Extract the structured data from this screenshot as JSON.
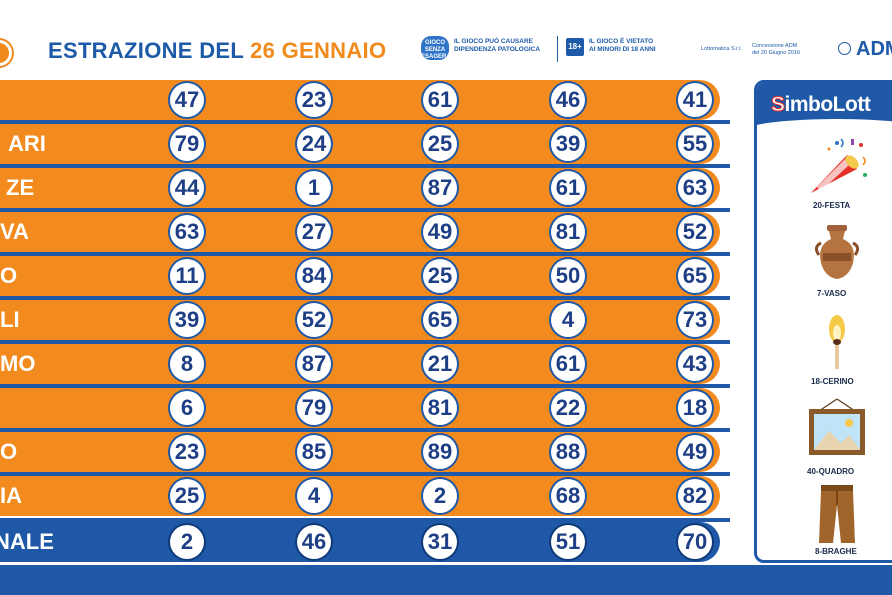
{
  "header": {
    "title_prefix": "ESTRAZIONE DEL",
    "title_date": "26 GENNAIO",
    "notice1_line1": "IL GIOCO PUÒ CAUSARE",
    "notice1_line2": "DIPENDENZA PATOLOGICA",
    "notice2_badge": "18+",
    "notice2_line1": "IL GIOCO È VIETATO",
    "notice2_line2": "AI MINORI DI 18 ANNI",
    "operator": "Lottomatica S.r.l.",
    "concession_line1": "Concessione ADM",
    "concession_line2": "del 20 Giugno 2016",
    "agency": "ADM"
  },
  "table": {
    "rows": [
      {
        "city": "",
        "numbers": [
          "47",
          "23",
          "61",
          "46",
          "41"
        ]
      },
      {
        "city": "ARI",
        "numbers": [
          "79",
          "24",
          "25",
          "39",
          "55"
        ]
      },
      {
        "city": "ZE",
        "numbers": [
          "44",
          "1",
          "87",
          "61",
          "63"
        ]
      },
      {
        "city": "VA",
        "numbers": [
          "63",
          "27",
          "49",
          "81",
          "52"
        ]
      },
      {
        "city": "O",
        "numbers": [
          "11",
          "84",
          "25",
          "50",
          "65"
        ]
      },
      {
        "city": "LI",
        "numbers": [
          "39",
          "52",
          "65",
          "4",
          "73"
        ]
      },
      {
        "city": "MO",
        "numbers": [
          "8",
          "87",
          "21",
          "61",
          "43"
        ]
      },
      {
        "city": "",
        "numbers": [
          "6",
          "79",
          "81",
          "22",
          "18"
        ]
      },
      {
        "city": "O",
        "numbers": [
          "23",
          "85",
          "89",
          "88",
          "49"
        ]
      },
      {
        "city": "IA",
        "numbers": [
          "25",
          "4",
          "2",
          "68",
          "82"
        ]
      },
      {
        "city": "NALE",
        "numbers": [
          "2",
          "46",
          "31",
          "51",
          "70"
        ],
        "final": true
      }
    ]
  },
  "simbolotto": {
    "title_s": "S",
    "title_rest": "imboLott",
    "symbols": [
      {
        "label": "20-FESTA",
        "icon": "party-popper-icon"
      },
      {
        "label": "7-VASO",
        "icon": "vase-icon"
      },
      {
        "label": "18-CERINO",
        "icon": "match-icon"
      },
      {
        "label": "40-QUADRO",
        "icon": "picture-frame-icon"
      },
      {
        "label": "8-BRAGHE",
        "icon": "trousers-icon"
      }
    ]
  },
  "colors": {
    "orange": "#f28a1e",
    "blue": "#1e58a6",
    "title_blue": "#1d5aa8",
    "date_orange": "#f08a1c"
  }
}
